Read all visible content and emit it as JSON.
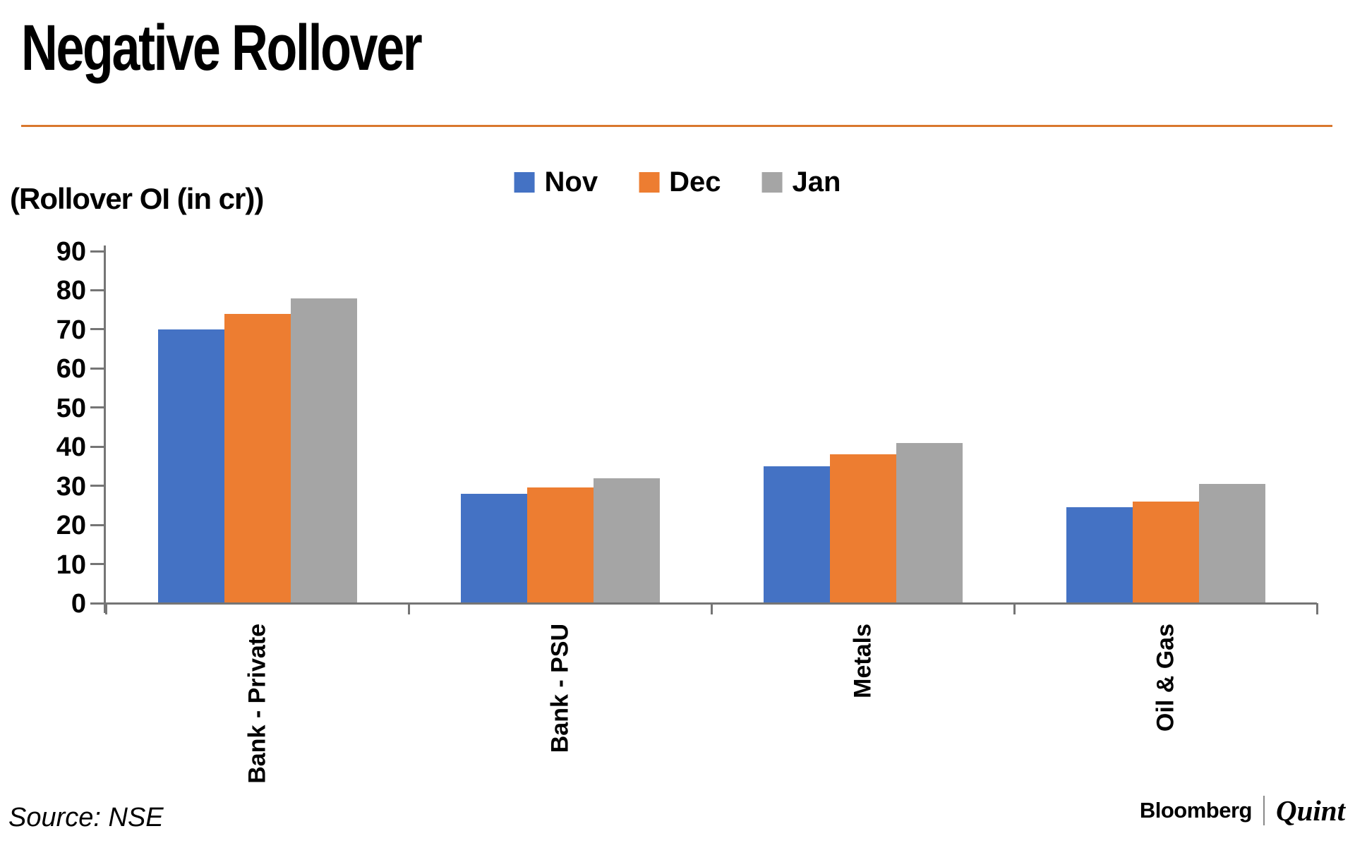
{
  "header": {
    "title": "Negative Rollover"
  },
  "chart_data": {
    "type": "bar",
    "title": "Negative Rollover",
    "ylabel": "(Rollover OI (in cr))",
    "xlabel": "",
    "categories": [
      "Bank - Private",
      "Bank - PSU",
      "Metals",
      "Oil & Gas"
    ],
    "series": [
      {
        "name": "Nov",
        "color": "#4472C4",
        "values": [
          70,
          28,
          35,
          24.5
        ]
      },
      {
        "name": "Dec",
        "color": "#ED7D31",
        "values": [
          74,
          29.5,
          38,
          26
        ]
      },
      {
        "name": "Jan",
        "color": "#A5A5A5",
        "values": [
          78,
          32,
          41,
          30.5
        ]
      }
    ],
    "ylim": [
      0,
      90
    ],
    "yticks": [
      0,
      10,
      20,
      30,
      40,
      50,
      60,
      70,
      80,
      90
    ],
    "grid": false,
    "legend_position": "top-center"
  },
  "footer": {
    "source": "Source: NSE",
    "brand_primary": "Bloomberg",
    "brand_secondary": "Quint"
  },
  "colors": {
    "accent_rule": "#D9782E",
    "axis": "#757575",
    "nov": "#4472C4",
    "dec": "#ED7D31",
    "jan": "#A5A5A5"
  }
}
